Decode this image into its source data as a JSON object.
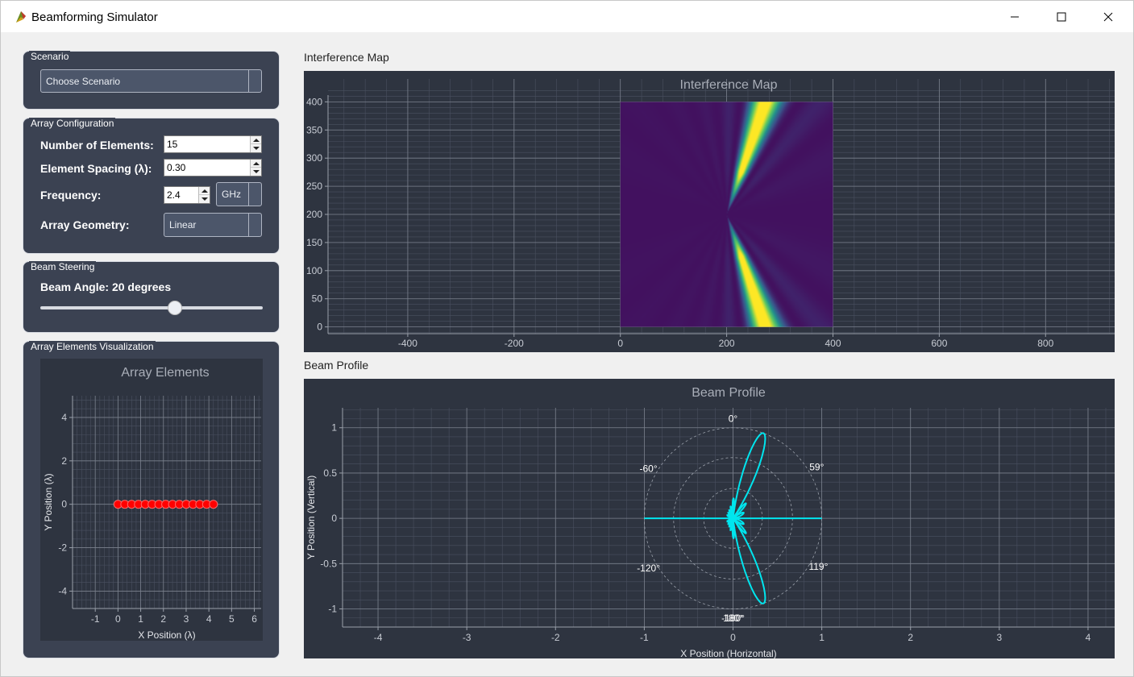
{
  "window": {
    "title": "Beamforming Simulator",
    "controls": {
      "minimize": "minimize-icon",
      "maximize": "maximize-icon",
      "close": "close-icon"
    }
  },
  "scenario": {
    "group_title": "Scenario",
    "select_value": "Choose Scenario"
  },
  "array_config": {
    "group_title": "Array Configuration",
    "num_elements_label": "Number of Elements:",
    "num_elements_value": "15",
    "spacing_label": "Element Spacing (λ):",
    "spacing_value": "0.30",
    "frequency_label": "Frequency:",
    "frequency_value": "2.4",
    "frequency_unit": "GHz",
    "geometry_label": "Array Geometry:",
    "geometry_value": "Linear"
  },
  "beam_steering": {
    "group_title": "Beam Steering",
    "angle_label": "Beam Angle: 20 degrees",
    "slider_value": 20,
    "slider_min": -90,
    "slider_max": 90
  },
  "array_vis": {
    "group_title": "Array Elements Visualization",
    "chart_data": {
      "type": "scatter",
      "title": "Array Elements",
      "xlabel": "X Position (λ)",
      "ylabel": "Y Position (λ)",
      "xlim": [
        -2,
        6.3
      ],
      "ylim": [
        -4.8,
        5
      ],
      "xticks": [
        -1,
        0,
        1,
        2,
        3,
        4,
        5,
        6
      ],
      "yticks": [
        -4,
        -2,
        0,
        2,
        4
      ],
      "x": [
        0,
        0.3,
        0.6,
        0.9,
        1.2,
        1.5,
        1.8,
        2.1,
        2.4,
        2.7,
        3.0,
        3.3,
        3.6,
        3.9,
        4.2
      ],
      "y": [
        0,
        0,
        0,
        0,
        0,
        0,
        0,
        0,
        0,
        0,
        0,
        0,
        0,
        0,
        0
      ],
      "marker_color": "#ff0000",
      "grid": true
    }
  },
  "interference": {
    "section_label": "Interference Map",
    "chart_data": {
      "type": "heatmap",
      "title": "Interference Map",
      "xlim": [
        -550,
        930
      ],
      "ylim": [
        -12,
        412
      ],
      "xticks": [
        -400,
        -200,
        0,
        200,
        400,
        600,
        800
      ],
      "yticks": [
        0,
        50,
        100,
        150,
        200,
        250,
        300,
        350,
        400
      ],
      "extent": {
        "x": [
          0,
          400
        ],
        "y": [
          0,
          400
        ]
      },
      "array_center": [
        200,
        200
      ],
      "beam_angle_deg": 20,
      "colormap": "viridis",
      "grid": true
    }
  },
  "beam_profile": {
    "section_label": "Beam Profile",
    "chart_data": {
      "type": "line",
      "title": "Beam Profile",
      "xlabel": "X Position (Horizontal)",
      "ylabel": "Y Position (Vertical)",
      "xlim": [
        -4.4,
        4.3
      ],
      "ylim": [
        -1.2,
        1.22
      ],
      "xticks": [
        -4,
        -3,
        -2,
        -1,
        0,
        1,
        2,
        3,
        4
      ],
      "yticks": [
        -1,
        -0.5,
        0,
        0.5,
        1
      ],
      "polar_rings": [
        0.33,
        0.67,
        1.0
      ],
      "angle_labels": [
        "0°",
        "59°",
        "119°",
        "-180°",
        "180°",
        "-120°",
        "-60°"
      ],
      "angle_label_deg": [
        0,
        59,
        119,
        -180,
        180,
        -120,
        -60
      ],
      "pattern": {
        "num_elements": 15,
        "spacing": 0.3,
        "steer_deg": 20
      },
      "line_color": "#00e5ee",
      "grid": true
    }
  }
}
